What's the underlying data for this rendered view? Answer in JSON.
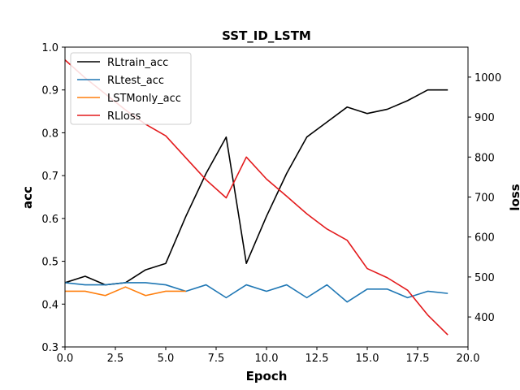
{
  "chart_data": {
    "type": "line",
    "title": "SST_ID_LSTM",
    "xlabel": "Epoch",
    "ylabel": "acc",
    "y2label": "loss",
    "xlim": [
      0,
      20
    ],
    "ylim": [
      0.3,
      1.0
    ],
    "y2lim": [
      325,
      1075
    ],
    "x_ticks": [
      "0.0",
      "2.5",
      "5.0",
      "7.5",
      "10.0",
      "12.5",
      "15.0",
      "17.5",
      "20.0"
    ],
    "y_ticks": [
      "0.3",
      "0.4",
      "0.5",
      "0.6",
      "0.7",
      "0.8",
      "0.9",
      "1.0"
    ],
    "y2_ticks": [
      "400",
      "500",
      "600",
      "700",
      "800",
      "900",
      "1000"
    ],
    "legend_position": "top-left",
    "series": [
      {
        "name": "RLtrain_acc",
        "axis": "left",
        "color": "#000000",
        "x": [
          0,
          1,
          2,
          3,
          4,
          5,
          6,
          7,
          8,
          9,
          10,
          11,
          12,
          13,
          14,
          15,
          16,
          17,
          18,
          19
        ],
        "values": [
          0.45,
          0.465,
          0.445,
          0.45,
          0.48,
          0.495,
          0.605,
          0.705,
          0.79,
          0.495,
          0.605,
          0.705,
          0.79,
          0.825,
          0.86,
          0.845,
          0.855,
          0.875,
          0.9,
          0.9
        ]
      },
      {
        "name": "RLtest_acc",
        "axis": "left",
        "color": "#1f77b4",
        "x": [
          0,
          1,
          2,
          3,
          4,
          5,
          6,
          7,
          8,
          9,
          10,
          11,
          12,
          13,
          14,
          15,
          16,
          17,
          18,
          19
        ],
        "values": [
          0.45,
          0.445,
          0.445,
          0.45,
          0.45,
          0.445,
          0.43,
          0.445,
          0.415,
          0.445,
          0.43,
          0.445,
          0.415,
          0.445,
          0.405,
          0.435,
          0.435,
          0.415,
          0.43,
          0.425
        ]
      },
      {
        "name": "LSTMonly_acc",
        "axis": "left",
        "color": "#ff7f0e",
        "x": [
          0,
          1,
          2,
          3,
          4,
          5,
          6
        ],
        "values": [
          0.43,
          0.43,
          0.42,
          0.44,
          0.42,
          0.43,
          0.43
        ]
      },
      {
        "name": "RLloss",
        "axis": "right",
        "color": "#e31a1c",
        "x": [
          0,
          1,
          2,
          3,
          4,
          5,
          6,
          7,
          8,
          9,
          10,
          11,
          12,
          13,
          14,
          15,
          16,
          17,
          18,
          19
        ],
        "values": [
          1043,
          998,
          958,
          918,
          882,
          853,
          798,
          743,
          698,
          800,
          745,
          702,
          658,
          620,
          592,
          521,
          498,
          467,
          405,
          355
        ]
      }
    ]
  }
}
